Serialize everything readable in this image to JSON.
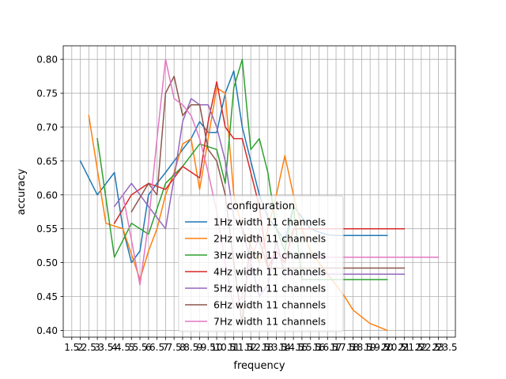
{
  "chart_data": {
    "type": "line",
    "xlabel": "frequency",
    "ylabel": "accuracy",
    "xlim": [
      1,
      24
    ],
    "ylim": [
      0.39,
      0.82
    ],
    "x_ticks": [
      "1.5",
      "2",
      "2.5",
      "3",
      "3.5",
      "4",
      "4.5",
      "5",
      "5.5",
      "6",
      "6.5",
      "7",
      "7.5",
      "8",
      "8.5",
      "9",
      "9.5",
      "10",
      "10.5",
      "11",
      "11.5",
      "12",
      "12.5",
      "13",
      "13.5",
      "14",
      "14.5",
      "15",
      "15.5",
      "16",
      "16.5",
      "17",
      "17.5",
      "18",
      "18.5",
      "19",
      "19.5",
      "20",
      "20.5",
      "21",
      "21.5",
      "22",
      "22.5",
      "23",
      "23.5"
    ],
    "y_ticks": [
      "0.40",
      "0.45",
      "0.50",
      "0.55",
      "0.60",
      "0.65",
      "0.70",
      "0.75",
      "0.80"
    ],
    "grid": true,
    "legend": {
      "title": "configuration",
      "placement": "lower-center"
    },
    "series": [
      {
        "name": "1Hz width 11 channels",
        "color": "#1f77b4",
        "x": [
          2,
          3,
          4,
          4.5,
          5,
          5.5,
          6,
          6.5,
          7,
          7.5,
          8,
          8.5,
          9,
          9.5,
          10,
          10.5,
          11,
          11.5,
          12,
          12.5,
          13,
          13.5,
          14,
          14.5,
          15,
          15.5,
          16,
          16.5,
          17,
          17.5,
          18,
          18.5,
          19,
          19.5,
          20
        ],
        "y": [
          0.65,
          0.6,
          0.633,
          0.55,
          0.5,
          0.517,
          0.6,
          0.617,
          0.633,
          0.65,
          0.667,
          0.683,
          0.708,
          0.692,
          0.692,
          0.75,
          0.783,
          0.7,
          0.65,
          0.6,
          0.567,
          0.55,
          0.533,
          0.583,
          0.567,
          0.55,
          0.545,
          0.541,
          0.54,
          0.54,
          0.54,
          0.54,
          0.54,
          0.54,
          0.54
        ]
      },
      {
        "name": "2Hz width 11 channels",
        "color": "#ff7f0e",
        "x": [
          2.5,
          3.5,
          4.5,
          5.5,
          6,
          6.5,
          7,
          7.5,
          8,
          8.5,
          9,
          9.5,
          10,
          10.5,
          11,
          11.5,
          12,
          12.5,
          13,
          13.5,
          14,
          14.5,
          15,
          15.5,
          16,
          16.5,
          17,
          17.5,
          18,
          18.5,
          19,
          19.5,
          20
        ],
        "y": [
          0.717,
          0.558,
          0.55,
          0.475,
          0.517,
          0.55,
          0.6,
          0.633,
          0.675,
          0.683,
          0.608,
          0.683,
          0.758,
          0.75,
          0.6,
          0.55,
          0.525,
          0.5,
          0.55,
          0.6,
          0.658,
          0.6,
          0.55,
          0.517,
          0.5,
          0.483,
          0.467,
          0.45,
          0.43,
          0.42,
          0.41,
          0.405,
          0.4
        ]
      },
      {
        "name": "3Hz width 11 channels",
        "color": "#2ca02c",
        "x": [
          3,
          4,
          5,
          6,
          7,
          8,
          9,
          10,
          10.5,
          11,
          11.5,
          12,
          12.5,
          13,
          13.5,
          14,
          14.5,
          15,
          15.5,
          16,
          16.5,
          17,
          17.5,
          18,
          18.5,
          19,
          19.5,
          20
        ],
        "y": [
          0.683,
          0.508,
          0.558,
          0.542,
          0.617,
          0.642,
          0.675,
          0.667,
          0.617,
          0.758,
          0.8,
          0.667,
          0.683,
          0.633,
          0.55,
          0.517,
          0.583,
          0.475,
          0.475,
          0.475,
          0.475,
          0.475,
          0.475,
          0.475,
          0.475,
          0.475,
          0.475,
          0.475
        ]
      },
      {
        "name": "4Hz width 11 channels",
        "color": "#d62728",
        "x": [
          4,
          5,
          6,
          7,
          8,
          9,
          9.5,
          10,
          10.5,
          11,
          11.5,
          12,
          12.5,
          13,
          13.5,
          14,
          14.5,
          15,
          15.5,
          16,
          16.5,
          17,
          17.5,
          18,
          18.5,
          19,
          19.5,
          20,
          20.5,
          21
        ],
        "y": [
          0.558,
          0.6,
          0.617,
          0.608,
          0.642,
          0.625,
          0.708,
          0.767,
          0.7,
          0.683,
          0.683,
          0.633,
          0.583,
          0.492,
          0.517,
          0.5,
          0.55,
          0.55,
          0.55,
          0.55,
          0.55,
          0.55,
          0.55,
          0.55,
          0.55,
          0.55,
          0.55,
          0.55,
          0.55,
          0.55
        ]
      },
      {
        "name": "5Hz width 11 channels",
        "color": "#9467bd",
        "x": [
          4,
          5,
          6,
          7,
          7.5,
          8,
          8.5,
          9,
          9.5,
          10,
          10.5,
          11,
          11.5,
          12,
          12.5,
          13,
          13.5,
          14,
          14.5,
          15,
          15.5,
          16,
          16.5,
          17,
          17.5,
          18,
          18.5,
          19,
          19.5,
          20,
          20.5,
          21
        ],
        "y": [
          0.583,
          0.617,
          0.583,
          0.55,
          0.625,
          0.708,
          0.742,
          0.733,
          0.733,
          0.7,
          0.65,
          0.567,
          0.55,
          0.5,
          0.45,
          0.467,
          0.533,
          0.483,
          0.483,
          0.483,
          0.483,
          0.483,
          0.483,
          0.483,
          0.483,
          0.483,
          0.483,
          0.483,
          0.483,
          0.483,
          0.483,
          0.483
        ]
      },
      {
        "name": "6Hz width 11 channels",
        "color": "#8c564b",
        "x": [
          5,
          6,
          6.5,
          7,
          7.5,
          8,
          8.5,
          9,
          9.5,
          10,
          10.5,
          11,
          11.5,
          12,
          12.5,
          13,
          13.5,
          14,
          14.5,
          15,
          15.5,
          16,
          16.5,
          17,
          17.5,
          18,
          18.5,
          19,
          19.5,
          20,
          20.5,
          21
        ],
        "y": [
          0.575,
          0.617,
          0.6,
          0.75,
          0.775,
          0.717,
          0.733,
          0.733,
          0.667,
          0.65,
          0.6,
          0.5,
          0.408,
          0.542,
          0.533,
          0.492,
          0.492,
          0.492,
          0.492,
          0.492,
          0.492,
          0.492,
          0.492,
          0.492,
          0.492,
          0.492,
          0.492,
          0.492,
          0.492,
          0.492,
          0.492,
          0.492
        ]
      },
      {
        "name": "7Hz width 11 channels",
        "color": "#e377c2",
        "x": [
          4.5,
          5.5,
          6,
          6.5,
          7,
          7.5,
          8,
          8.5,
          9,
          9.5,
          10,
          10.5,
          11,
          11.5,
          12,
          12.5,
          13,
          13.5,
          14,
          14.5,
          15,
          15.5,
          16,
          16.5,
          17,
          17.5,
          18,
          18.5,
          19,
          19.5,
          20,
          20.5,
          21,
          21.5,
          22,
          22.5,
          23
        ],
        "y": [
          0.6,
          0.467,
          0.558,
          0.683,
          0.8,
          0.742,
          0.733,
          0.717,
          0.683,
          0.633,
          0.575,
          0.5,
          0.433,
          0.45,
          0.5,
          0.542,
          0.508,
          0.508,
          0.508,
          0.508,
          0.508,
          0.508,
          0.508,
          0.508,
          0.508,
          0.508,
          0.508,
          0.508,
          0.508,
          0.508,
          0.508,
          0.508,
          0.508,
          0.508,
          0.508,
          0.508,
          0.508
        ]
      }
    ]
  }
}
